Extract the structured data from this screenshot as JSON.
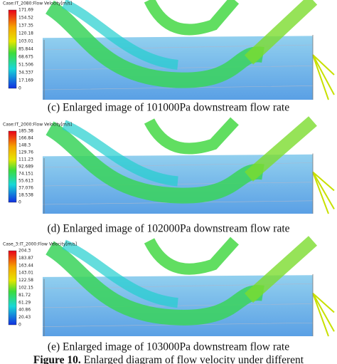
{
  "figure": {
    "panels": [
      {
        "legend": {
          "title": "Case:IT_2080:Flow Velocity[m/s]",
          "ticks": [
            "171.69",
            "154.52",
            "137.35",
            "120.18",
            "103.01",
            "85.844",
            "68.675",
            "51.506",
            "34.337",
            "17.169",
            "0"
          ]
        },
        "caption": "(c) Enlarged image of 101000Pa downstream flow rate"
      },
      {
        "legend": {
          "title": "Case:IT_2000:Flow Velocity[m/s]",
          "ticks": [
            "185.38",
            "166.84",
            "148.3",
            "129.76",
            "111.23",
            "92.689",
            "74.151",
            "55.613",
            "37.076",
            "18.538",
            "0"
          ]
        },
        "caption": "(d) Enlarged image of 102000Pa downstream flow rate"
      },
      {
        "legend": {
          "title": "Case_3:IT_2000:Flow Velocity[m/s]",
          "ticks": [
            "204.3",
            "183.87",
            "163.44",
            "143.01",
            "122.58",
            "102.15",
            "81.72",
            "61.29",
            "40.86",
            "20.43",
            "0"
          ]
        },
        "caption": "(e) Enlarged image of 103000Pa downstream flow rate"
      }
    ],
    "caption_label": "Figure 10.",
    "caption_text": "Enlarged diagram of flow velocity under different"
  }
}
